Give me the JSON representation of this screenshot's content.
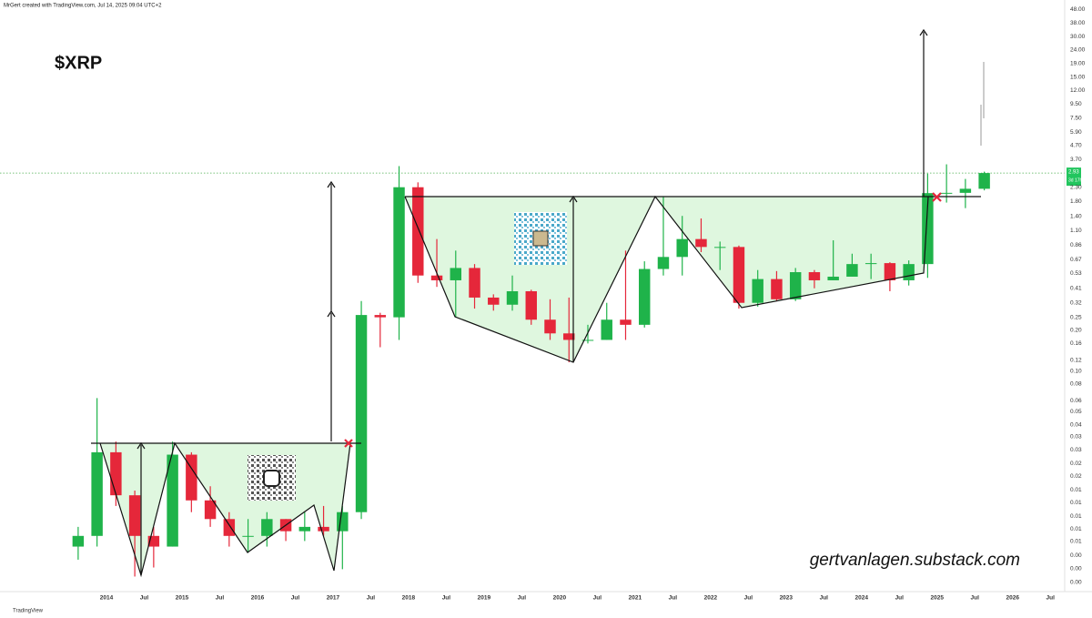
{
  "header": "MrGert created with TradingView.com, Jul 14, 2025 09:04 UTC+2",
  "footer": "TradingView",
  "chart_data": {
    "type": "candlestick",
    "title": "$XRP",
    "annotation": "gertvanlagen.substack.com",
    "log_scale": true,
    "grid": false,
    "up_color": "#1fb34a",
    "down_color": "#e5273a",
    "x": [
      2013.625,
      2013.875,
      2014.125,
      2014.375,
      2014.625,
      2014.875,
      2015.125,
      2015.375,
      2015.625,
      2015.875,
      2016.125,
      2016.375,
      2016.625,
      2016.875,
      2017.125,
      2017.375,
      2017.625,
      2017.875,
      2018.125,
      2018.375,
      2018.625,
      2018.875,
      2019.125,
      2019.375,
      2019.625,
      2019.875,
      2020.125,
      2020.375,
      2020.625,
      2020.875,
      2021.125,
      2021.375,
      2021.625,
      2021.875,
      2022.125,
      2022.375,
      2022.625,
      2022.875,
      2023.125,
      2023.375,
      2023.625,
      2023.875,
      2024.125,
      2024.375,
      2024.625,
      2024.875,
      2025.125,
      2025.375,
      2025.625
    ],
    "open": [
      0.005,
      0.006,
      0.025,
      0.012,
      0.006,
      0.005,
      0.024,
      0.011,
      0.008,
      0.006,
      0.006,
      0.008,
      0.0065,
      0.007,
      0.0065,
      0.009,
      0.26,
      0.25,
      2.3,
      0.51,
      0.47,
      0.58,
      0.35,
      0.31,
      0.39,
      0.24,
      0.19,
      0.17,
      0.17,
      0.24,
      0.22,
      0.57,
      0.7,
      0.95,
      0.83,
      0.83,
      0.32,
      0.48,
      0.34,
      0.54,
      0.47,
      0.5,
      0.62,
      0.63,
      0.47,
      0.62,
      2.08,
      2.09,
      2.24
    ],
    "high": [
      0.007,
      0.063,
      0.03,
      0.013,
      0.007,
      0.03,
      0.025,
      0.014,
      0.009,
      0.008,
      0.009,
      0.008,
      0.009,
      0.01,
      0.01,
      0.33,
      0.27,
      3.3,
      2.5,
      0.95,
      0.78,
      0.62,
      0.37,
      0.51,
      0.4,
      0.34,
      0.35,
      0.22,
      0.32,
      0.78,
      0.65,
      1.96,
      1.41,
      1.35,
      0.91,
      0.85,
      0.56,
      0.55,
      0.58,
      0.56,
      0.93,
      0.74,
      0.74,
      0.64,
      0.66,
      2.9,
      3.4,
      2.65,
      3.0
    ],
    "low": [
      0.004,
      0.005,
      0.01,
      0.003,
      0.0035,
      0.005,
      0.009,
      0.007,
      0.005,
      0.0045,
      0.005,
      0.0055,
      0.0055,
      0.006,
      0.0034,
      0.008,
      0.15,
      0.17,
      0.45,
      0.42,
      0.25,
      0.29,
      0.28,
      0.28,
      0.22,
      0.17,
      0.116,
      0.16,
      0.17,
      0.17,
      0.21,
      0.51,
      0.51,
      0.76,
      0.56,
      0.29,
      0.3,
      0.33,
      0.33,
      0.41,
      0.47,
      0.5,
      0.48,
      0.39,
      0.43,
      0.49,
      1.77,
      1.61,
      2.18
    ],
    "close": [
      0.006,
      0.025,
      0.012,
      0.006,
      0.005,
      0.024,
      0.011,
      0.008,
      0.006,
      0.006,
      0.008,
      0.0065,
      0.007,
      0.0065,
      0.009,
      0.26,
      0.25,
      2.3,
      0.51,
      0.47,
      0.58,
      0.35,
      0.31,
      0.39,
      0.24,
      0.19,
      0.17,
      0.17,
      0.24,
      0.22,
      0.57,
      0.7,
      0.95,
      0.83,
      0.83,
      0.32,
      0.48,
      0.34,
      0.54,
      0.47,
      0.5,
      0.62,
      0.63,
      0.47,
      0.62,
      2.08,
      2.09,
      2.24,
      2.93
    ],
    "last_price": 2.93,
    "countdown": "3d 17h",
    "xlim": [
      2012.59,
      2026.69
    ],
    "xticks": [
      2014,
      {
        "value": 2014.5,
        "label": "Jul"
      },
      2015,
      {
        "value": 2015.5,
        "label": "Jul"
      },
      2016,
      {
        "value": 2016.5,
        "label": "Jul"
      },
      2017,
      {
        "value": 2017.5,
        "label": "Jul"
      },
      2018,
      {
        "value": 2018.5,
        "label": "Jul"
      },
      2019,
      {
        "value": 2019.5,
        "label": "Jul"
      },
      2020,
      {
        "value": 2020.5,
        "label": "Jul"
      },
      2021,
      {
        "value": 2021.5,
        "label": "Jul"
      },
      2022,
      {
        "value": 2022.5,
        "label": "Jul"
      },
      2023,
      {
        "value": 2023.5,
        "label": "Jul"
      },
      2024,
      {
        "value": 2024.5,
        "label": "Jul"
      },
      2025,
      {
        "value": 2025.5,
        "label": "Jul"
      },
      2026,
      {
        "value": 2026.5,
        "label": "Jul"
      }
    ],
    "ylim": [
      0.00232,
      56.1
    ],
    "yticks": [
      {
        "value": 48,
        "label": "48.00"
      },
      {
        "value": 38,
        "label": "38.00"
      },
      {
        "value": 30,
        "label": "30.00"
      },
      {
        "value": 24,
        "label": "24.00"
      },
      {
        "value": 19,
        "label": "19.00"
      },
      {
        "value": 15,
        "label": "15.00"
      },
      {
        "value": 12,
        "label": "12.00"
      },
      {
        "value": 9.5,
        "label": "9.50"
      },
      {
        "value": 7.5,
        "label": "7.50"
      },
      {
        "value": 5.9,
        "label": "5.90"
      },
      {
        "value": 4.7,
        "label": "4.70"
      },
      {
        "value": 3.7,
        "label": "3.70"
      },
      {
        "value": 2.3,
        "label": "2.30"
      },
      {
        "value": 1.8,
        "label": "1.80"
      },
      {
        "value": 1.4,
        "label": "1.40"
      },
      {
        "value": 1.1,
        "label": "1.10"
      },
      0.86,
      0.67,
      0.53,
      0.41,
      0.32,
      0.25,
      {
        "value": 0.2,
        "label": "0.20"
      },
      0.16,
      0.12,
      {
        "value": 0.1,
        "label": "0.10"
      },
      0.08,
      0.06,
      0.05,
      0.04,
      {
        "value": 0.0325,
        "label": "0.03"
      },
      {
        "value": 0.0261,
        "label": "0.03"
      },
      {
        "value": 0.0207,
        "label": "0.02"
      },
      {
        "value": 0.0166,
        "label": "0.02"
      },
      {
        "value": 0.0132,
        "label": "0.01"
      },
      {
        "value": 0.0106,
        "label": "0.01"
      },
      {
        "value": 0.0084,
        "label": "0.01"
      },
      {
        "value": 0.00675,
        "label": "0.01"
      },
      {
        "value": 0.00545,
        "label": "0.01"
      },
      {
        "value": 0.00431,
        "label": "0.00"
      },
      {
        "value": 0.00342,
        "label": "0.00"
      },
      {
        "value": 0.00271,
        "label": "0.00"
      }
    ]
  }
}
